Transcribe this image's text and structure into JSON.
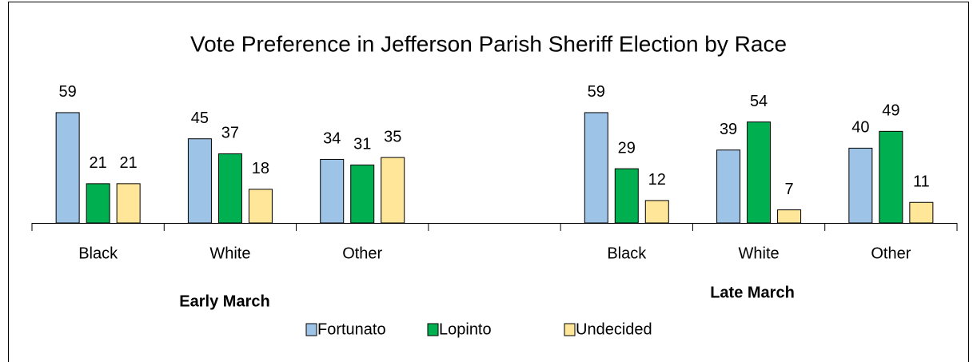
{
  "chart_data": {
    "type": "bar",
    "title": "Vote Preference in Jefferson Parish Sheriff Election by Race",
    "categories": [
      "Black",
      "White",
      "Other",
      null,
      "Black",
      "White",
      "Other"
    ],
    "groups": [
      "Early March",
      "Late March"
    ],
    "series": [
      {
        "name": "Fortunato",
        "color": "#9dc3e6",
        "values": [
          59,
          45,
          34,
          null,
          59,
          39,
          40
        ]
      },
      {
        "name": "Lopinto",
        "color": "#00b050",
        "values": [
          21,
          37,
          31,
          null,
          29,
          54,
          49
        ]
      },
      {
        "name": "Undecided",
        "color": "#ffe699",
        "values": [
          21,
          18,
          35,
          null,
          12,
          7,
          11
        ]
      }
    ],
    "ylim": [
      0,
      60
    ],
    "grid": false
  }
}
